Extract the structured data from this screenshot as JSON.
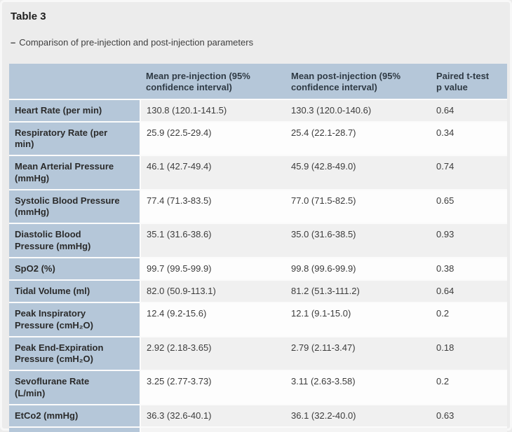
{
  "page": {
    "background": "#ececec",
    "accent_blue": "#b5c7d9",
    "row_gray": "#f0f0f0",
    "row_white": "#fdfdfd"
  },
  "header": {
    "title": "Table 3",
    "caption_dash": "–",
    "caption": "Comparison of pre-injection and post-injection parameters"
  },
  "table": {
    "columns": {
      "label": "",
      "pre": "Mean pre-injection (95%\nconfidence interval)",
      "post": "Mean post-injection (95%\nconfidence interval)",
      "p": "Paired t-test\np value"
    },
    "rows": [
      {
        "label": "Heart Rate (per min)",
        "pre": "130.8 (120.1-141.5)",
        "post": "130.3 (120.0-140.6)",
        "p": "0.64"
      },
      {
        "label": "Respiratory Rate (per\nmin)",
        "pre": "25.9 (22.5-29.4)",
        "post": "25.4 (22.1-28.7)",
        "p": "0.34"
      },
      {
        "label": "Mean Arterial Pressure\n(mmHg)",
        "pre": "46.1 (42.7-49.4)",
        "post": "45.9 (42.8-49.0)",
        "p": "0.74"
      },
      {
        "label": "Systolic Blood Pressure\n(mmHg)",
        "pre": "77.4 (71.3-83.5)",
        "post": "77.0 (71.5-82.5)",
        "p": "0.65"
      },
      {
        "label": "Diastolic Blood\nPressure (mmHg)",
        "pre": "35.1 (31.6-38.6)",
        "post": "35.0 (31.6-38.5)",
        "p": "0.93"
      },
      {
        "label": "SpO2 (%)",
        "pre": "99.7 (99.5-99.9)",
        "post": "99.8 (99.6-99.9)",
        "p": "0.38"
      },
      {
        "label": "Tidal Volume (ml)",
        "pre": "82.0 (50.9-113.1)",
        "post": "81.2 (51.3-111.2)",
        "p": "0.64"
      },
      {
        "label": "Peak Inspiratory\nPressure (cmH₂O)",
        "pre": "12.4 (9.2-15.6)",
        "post": "12.1 (9.1-15.0)",
        "p": "0.2"
      },
      {
        "label": "Peak End-Expiration\nPressure (cmH₂O)",
        "pre": "2.92 (2.18-3.65)",
        "post": "2.79 (2.11-3.47)",
        "p": "0.18"
      },
      {
        "label": "Sevoflurane Rate\n(L/min)",
        "pre": "3.25 (2.77-3.73)",
        "post": "3.11 (2.63-3.58)",
        "p": "0.2"
      },
      {
        "label": "EtCo2 (mmHg)",
        "pre": "36.3 (32.6-40.1)",
        "post": "36.1 (32.2-40.0)",
        "p": "0.63"
      }
    ]
  }
}
